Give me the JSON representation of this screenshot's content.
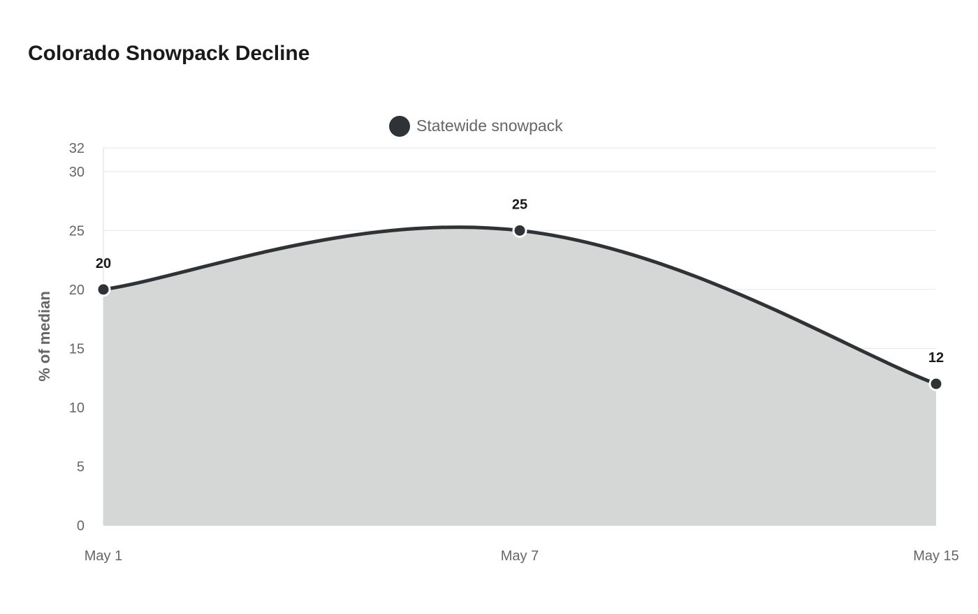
{
  "chart_data": {
    "type": "area",
    "title": "Colorado Snowpack Decline",
    "x": [
      "May 1",
      "May 7",
      "May 15"
    ],
    "series": [
      {
        "name": "Statewide snowpack",
        "values": [
          20,
          25,
          12
        ]
      }
    ],
    "ylabel": "% of median",
    "ylim": [
      0,
      32
    ],
    "yticks": [
      0,
      5,
      10,
      15,
      20,
      25,
      30,
      32
    ],
    "legend_position": "top",
    "grid": true,
    "colors": {
      "line": "#2f3336",
      "fill": "#d5d6d6",
      "grid": "#e6e6e6"
    },
    "data_labels": true
  }
}
